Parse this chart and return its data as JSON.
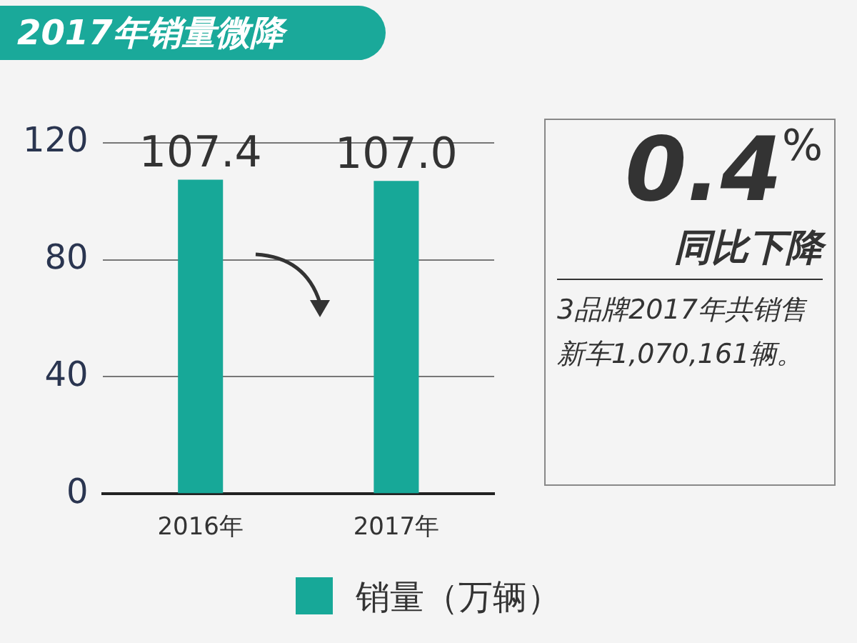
{
  "chart_data": {
    "type": "bar",
    "title": "2017年销量微降",
    "categories": [
      "2016年",
      "2017年"
    ],
    "series": [
      {
        "name": "销量（万辆）",
        "color": "#17a898",
        "values": [
          107.4,
          107.0
        ],
        "value_labels": [
          "107.4",
          "107.0"
        ]
      }
    ],
    "ylim": [
      0,
      120
    ],
    "yticks": [
      0,
      40,
      80,
      120
    ],
    "grid": "y",
    "legend": "bottom",
    "annotations": [
      "0.4$^{%}$",
      "同比下降",
      "3品牌2017年共销售新车1,070,161辆。"
    ]
  }
}
